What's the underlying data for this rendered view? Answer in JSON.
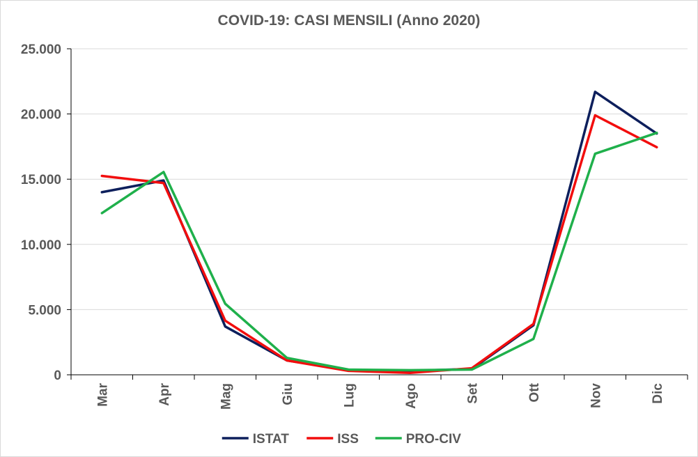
{
  "chart_data": {
    "type": "line",
    "title": "COVID-19: CASI MENSILI (Anno 2020)",
    "categories": [
      "Mar",
      "Apr",
      "Mag",
      "Giu",
      "Lug",
      "Ago",
      "Set",
      "Ott",
      "Nov",
      "Dic"
    ],
    "ylim": [
      0,
      25000
    ],
    "yticks": [
      0,
      5000,
      10000,
      15000,
      20000,
      25000
    ],
    "ytick_labels": [
      "0",
      "5.000",
      "10.000",
      "15.000",
      "20.000",
      "25.000"
    ],
    "grid": true,
    "legend_position": "bottom",
    "series": [
      {
        "name": "ISTAT",
        "color": "#0d1f5c",
        "values": [
          14000,
          14900,
          3700,
          1100,
          350,
          300,
          450,
          3800,
          21700,
          18500
        ]
      },
      {
        "name": "ISS",
        "color": "#f20d0d",
        "values": [
          15250,
          14700,
          4150,
          1100,
          300,
          150,
          500,
          3900,
          19900,
          17450
        ]
      },
      {
        "name": "PRO-CIV",
        "color": "#1fb04b",
        "values": [
          12400,
          15550,
          5450,
          1300,
          400,
          350,
          400,
          2750,
          16950,
          18550
        ]
      }
    ]
  }
}
